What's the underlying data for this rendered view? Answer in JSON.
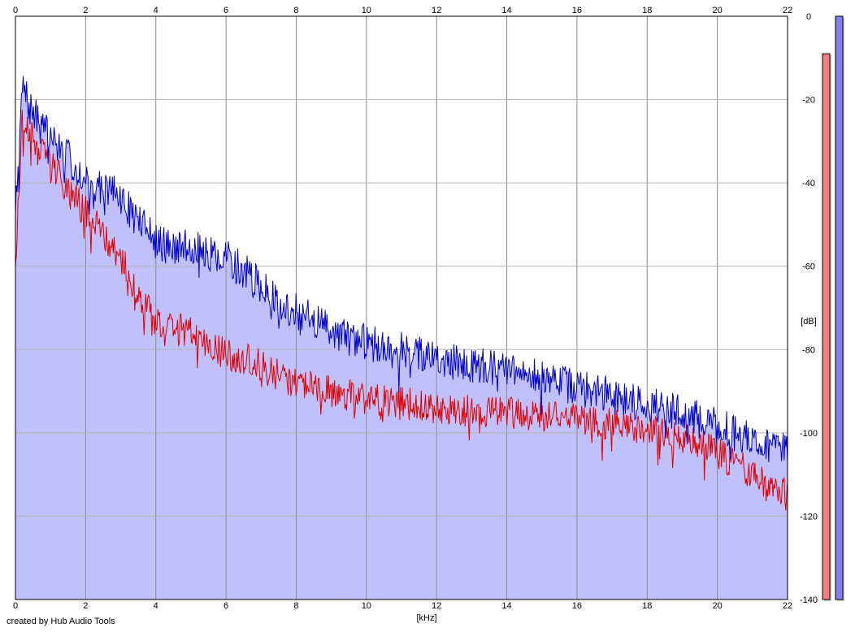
{
  "credit": "created by Hub Audio Tools",
  "chart_data": {
    "type": "line",
    "xlabel": "[kHz]",
    "ylabel": "[dB]",
    "xlim": [
      0,
      22
    ],
    "ylim": [
      -140,
      0
    ],
    "x_ticks": [
      "0",
      "2",
      "4",
      "6",
      "8",
      "10",
      "12",
      "14",
      "16",
      "18",
      "20",
      "22"
    ],
    "y_ticks": [
      "0",
      "-20",
      "-40",
      "-60",
      "-80",
      "-100",
      "-120",
      "-140"
    ],
    "grid": true,
    "series": [
      {
        "color": "#0000c8",
        "x": [
          0.0,
          0.2,
          0.4,
          0.7,
          1.0,
          1.4,
          1.8,
          2.2,
          2.6,
          3.0,
          3.5,
          4.0,
          4.5,
          5.0,
          5.5,
          6.0,
          6.5,
          7.0,
          7.5,
          8.0,
          8.5,
          9.0,
          9.5,
          10.0,
          10.5,
          11.0,
          11.5,
          12.0,
          12.5,
          13.0,
          13.5,
          14.0,
          14.5,
          15.0,
          15.5,
          16.0,
          16.5,
          17.0,
          17.5,
          18.0,
          18.5,
          19.0,
          19.5,
          20.0,
          20.5,
          21.0,
          21.5,
          22.0
        ],
        "values": [
          -45,
          -17,
          -22,
          -26,
          -29,
          -33,
          -37,
          -40,
          -41,
          -44,
          -49,
          -54,
          -56,
          -55,
          -57,
          -58,
          -61,
          -65,
          -69,
          -71,
          -73,
          -75,
          -77,
          -78,
          -80,
          -80,
          -81,
          -82,
          -83,
          -84,
          -84,
          -85,
          -86,
          -87,
          -88,
          -89,
          -90,
          -91,
          -92,
          -93,
          -94,
          -95,
          -97,
          -98,
          -100,
          -101,
          -103,
          -105
        ]
      },
      {
        "color": "#e00000",
        "x": [
          0.0,
          0.2,
          0.4,
          0.7,
          1.0,
          1.4,
          1.8,
          2.2,
          2.6,
          3.0,
          3.5,
          4.0,
          4.5,
          5.0,
          5.5,
          6.0,
          6.5,
          7.0,
          7.5,
          8.0,
          8.5,
          9.0,
          9.5,
          10.0,
          10.5,
          11.0,
          11.5,
          12.0,
          12.5,
          13.0,
          13.5,
          14.0,
          14.5,
          15.0,
          15.5,
          16.0,
          16.5,
          17.0,
          17.5,
          18.0,
          18.5,
          19.0,
          19.5,
          20.0,
          20.5,
          21.0,
          21.5,
          22.0
        ],
        "values": [
          -58,
          -24,
          -28,
          -32,
          -36,
          -40,
          -45,
          -49,
          -54,
          -58,
          -66,
          -73,
          -75,
          -76,
          -79,
          -81,
          -82,
          -84,
          -86,
          -88,
          -89,
          -90,
          -91,
          -92,
          -92,
          -93,
          -93,
          -94,
          -94,
          -95,
          -95,
          -95,
          -96,
          -96,
          -96,
          -97,
          -97,
          -98,
          -98,
          -99,
          -100,
          -101,
          -103,
          -105,
          -107,
          -110,
          -113,
          -115
        ]
      }
    ],
    "level_meters": [
      {
        "color": "#f08080",
        "value_db": -9
      },
      {
        "color": "#8080f0",
        "value_db": 0
      }
    ]
  }
}
